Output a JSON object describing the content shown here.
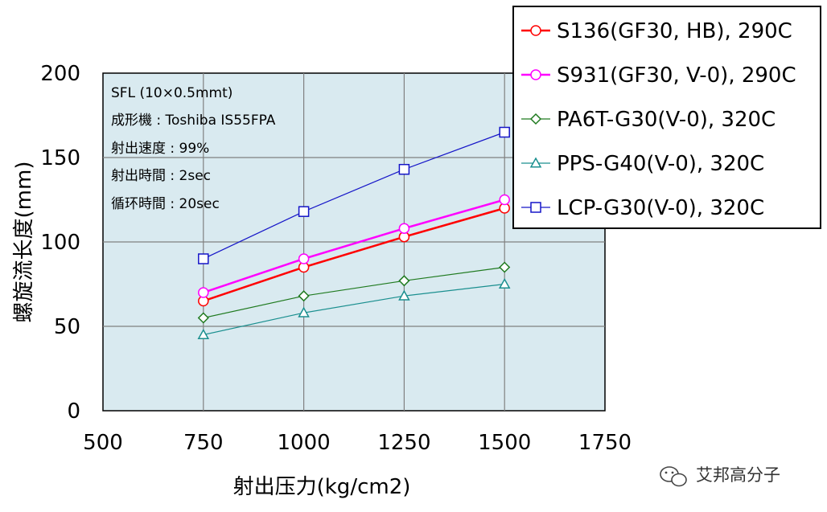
{
  "chart_data": {
    "type": "line",
    "title": "",
    "xlabel": "射出压力(kg/cm2)",
    "ylabel": "螺旋流长度(mm)",
    "xlim": [
      500,
      1750
    ],
    "ylim": [
      0,
      200
    ],
    "xticks": [
      "500",
      "750",
      "1000",
      "1250",
      "1500",
      "1750"
    ],
    "yticks": [
      "0",
      "50",
      "100",
      "150",
      "200"
    ],
    "grid": true,
    "legend_position": "top-right",
    "x": [
      750,
      1000,
      1250,
      1500
    ],
    "series": [
      {
        "name": "S136(GF30, HB), 290C",
        "values": [
          65,
          85,
          103,
          120
        ],
        "color": "#ff0000",
        "marker": "circle",
        "line_width": 2.5
      },
      {
        "name": "S931(GF30, V-0), 290C",
        "values": [
          70,
          90,
          108,
          125
        ],
        "color": "#ff00ff",
        "marker": "circle",
        "line_width": 2.5
      },
      {
        "name": "PA6T-G30(V-0), 320C",
        "values": [
          55,
          68,
          77,
          85
        ],
        "color": "#1f7a1f",
        "marker": "diamond",
        "line_width": 1.2
      },
      {
        "name": "PPS-G40(V-0), 320C",
        "values": [
          45,
          58,
          68,
          75
        ],
        "color": "#1a8f8f",
        "marker": "triangle",
        "line_width": 1.2
      },
      {
        "name": "LCP-G30(V-0), 320C",
        "values": [
          90,
          118,
          143,
          165
        ],
        "color": "#1515c8",
        "marker": "square",
        "line_width": 1.2
      }
    ],
    "annotations": [
      "SFL (10×0.5mmt)",
      "成形機 : Toshiba IS55FPA",
      "射出速度 : 99%",
      "射出時間 : 2sec",
      "循环時間 : 20sec"
    ],
    "plot_background": "#d9eaf0"
  },
  "watermark": {
    "text": "艾邦高分子",
    "icon": "wechat-icon"
  }
}
